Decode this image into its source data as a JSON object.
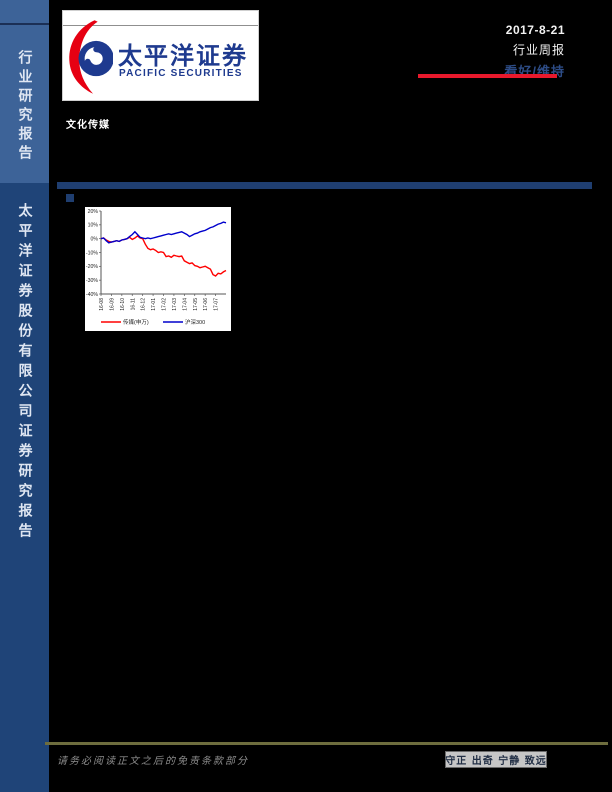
{
  "page": {
    "background": "#000000"
  },
  "sidebar": {
    "top_section_label": "行业研究报告",
    "bottom_section_label": "太平洋证券股份有限公司证券研究报告",
    "colors": {
      "top_bg": "#3d6398",
      "bottom_bg": "#1f4478",
      "divider": "#1b2f55"
    }
  },
  "header": {
    "logo_cn": "太平洋证券",
    "logo_en": "PACIFIC SECURITIES",
    "date": "2017-8-21",
    "report_type": "行业周报",
    "rating": "看好/维持",
    "colors": {
      "logo_blue": "#1e3a8f",
      "logo_red": "#e60012",
      "rating_blue": "#2d4c86",
      "underline_red": "#e8192c"
    }
  },
  "industry_label": "文化传媒",
  "chart_data": {
    "type": "line",
    "title": "",
    "xlabel": "",
    "ylabel": "",
    "grid": false,
    "legend_position": "bottom",
    "ylim": [
      -40,
      20
    ],
    "y_ticks": [
      20,
      10,
      0,
      -10,
      -20,
      -30,
      -40
    ],
    "x_tick_labels": [
      "16-08",
      "16-09",
      "16-10",
      "16-11",
      "16-12",
      "17-01",
      "17-02",
      "17-03",
      "17-04",
      "17-05",
      "17-06",
      "17-07"
    ],
    "series": [
      {
        "name": "传媒(申万)",
        "color": "#ff0000",
        "values": [
          0,
          0.5,
          -1,
          -2,
          -2.5,
          -2,
          -1.5,
          -2,
          -1,
          -0.5,
          0,
          1,
          -0.5,
          0.5,
          2,
          0.5,
          0,
          -4,
          -7,
          -8,
          -7.5,
          -8.5,
          -10,
          -9.5,
          -10,
          -13,
          -12.5,
          -13.5,
          -12,
          -12.5,
          -13,
          -12.5,
          -16,
          -17,
          -18,
          -17.5,
          -19.5,
          -20,
          -21,
          -20.5,
          -20,
          -21,
          -22,
          -26,
          -27,
          -25,
          -25.5,
          -24,
          -23
        ]
      },
      {
        "name": "沪深300",
        "color": "#0000cc",
        "values": [
          0,
          0.5,
          -1.5,
          -3,
          -2.5,
          -2,
          -1.5,
          -2,
          -1,
          -0.5,
          0,
          1.5,
          3,
          5,
          3,
          1,
          0.5,
          0,
          0.5,
          0,
          0.5,
          1,
          1.5,
          2,
          2.5,
          3,
          3.5,
          3,
          3.5,
          4,
          4.5,
          5,
          4,
          3,
          1.5,
          2.5,
          3.5,
          4,
          5,
          5.5,
          6,
          7,
          8,
          8.5,
          9.5,
          10.5,
          11,
          12,
          11.5
        ]
      }
    ]
  },
  "footer": {
    "disclaimer": "请务必阅读正文之后的免责条款部分",
    "slogan": "守正 出奇 宁静 致远"
  }
}
